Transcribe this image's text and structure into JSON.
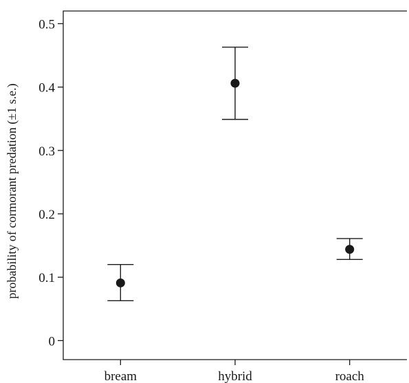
{
  "chart_data": {
    "type": "scatter",
    "title": "",
    "xlabel": "",
    "ylabel": "probability of cormorant predation (±1 s.e.)",
    "categories": [
      "bream",
      "hybrid",
      "roach"
    ],
    "values": [
      0.091,
      0.406,
      0.144
    ],
    "error_low": [
      0.063,
      0.349,
      0.128
    ],
    "error_high": [
      0.12,
      0.463,
      0.161
    ],
    "ylim": [
      -0.03,
      0.52
    ],
    "yticks": [
      0,
      0.1,
      0.2,
      0.3,
      0.4,
      0.5
    ],
    "ytick_labels": [
      "0",
      "0.1",
      "0.2",
      "0.3",
      "0.4",
      "0.5"
    ],
    "grid": false,
    "legend": "none",
    "marker_color": "#1a1a1a"
  }
}
